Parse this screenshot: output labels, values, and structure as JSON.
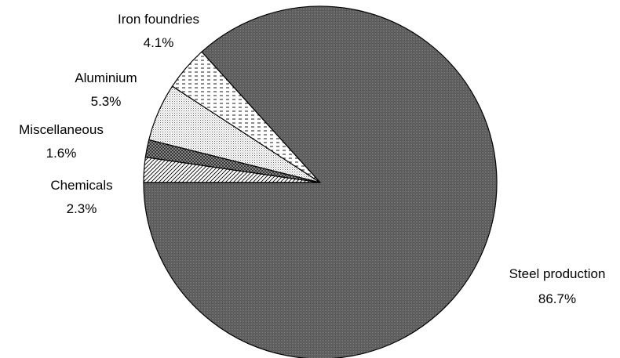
{
  "chart_data": {
    "type": "pie",
    "start_angle_deg": 180,
    "direction": "clockwise",
    "colors": {
      "dark_fill": "#5a5a5a",
      "light_fill": "#ffffff",
      "stroke": "#000000"
    },
    "slices": [
      {
        "label": "Chemicals",
        "percent_label": "2.3%",
        "value": 2.3,
        "pattern": "diag-hatch"
      },
      {
        "label": "Miscellaneous",
        "percent_label": "1.6%",
        "value": 1.6,
        "pattern": "cross-hatch"
      },
      {
        "label": "Aluminium",
        "percent_label": "5.3%",
        "value": 5.3,
        "pattern": "fine-dots"
      },
      {
        "label": "Iron foundries",
        "percent_label": "4.1%",
        "value": 4.1,
        "pattern": "dashes"
      },
      {
        "label": "Steel production",
        "percent_label": "86.7%",
        "value": 86.7,
        "pattern": "dark-dots"
      }
    ]
  }
}
